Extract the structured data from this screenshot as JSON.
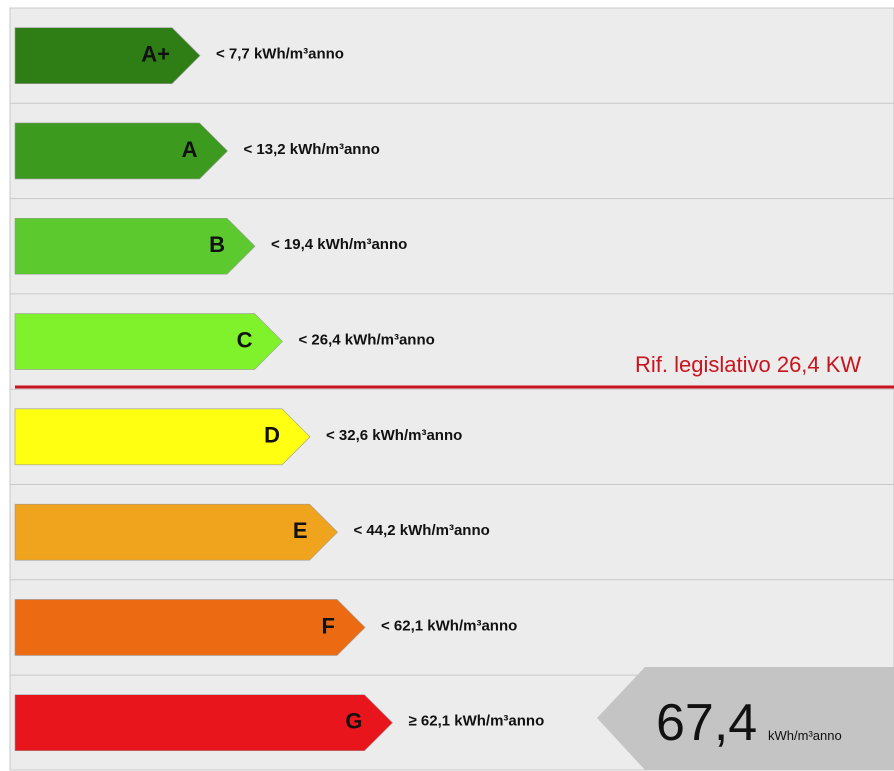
{
  "classes": [
    {
      "letter": "A+",
      "threshold": "< 7,7 kWh/m³anno",
      "color": "#2f7d15"
    },
    {
      "letter": "A",
      "threshold": "< 13,2 kWh/m³anno",
      "color": "#3c9a1e"
    },
    {
      "letter": "B",
      "threshold": "< 19,4 kWh/m³anno",
      "color": "#5cc92e"
    },
    {
      "letter": "C",
      "threshold": "< 26,4 kWh/m³anno",
      "color": "#80f22b"
    },
    {
      "letter": "D",
      "threshold": "< 32,6 kWh/m³anno",
      "color": "#ffff12"
    },
    {
      "letter": "E",
      "threshold": "< 44,2 kWh/m³anno",
      "color": "#f0a31c"
    },
    {
      "letter": "F",
      "threshold": "< 62,1 kWh/m³anno",
      "color": "#ec6b12"
    },
    {
      "letter": "G",
      "threshold": "≥ 62,1 kWh/m³anno",
      "color": "#e8151d"
    }
  ],
  "reference": {
    "label": "Rif. legislativo 26,4 KW",
    "color": "#c8141e"
  },
  "indicator": {
    "value": "67,4",
    "unit": "kWh/m³anno",
    "color": "#c4c4c4"
  }
}
